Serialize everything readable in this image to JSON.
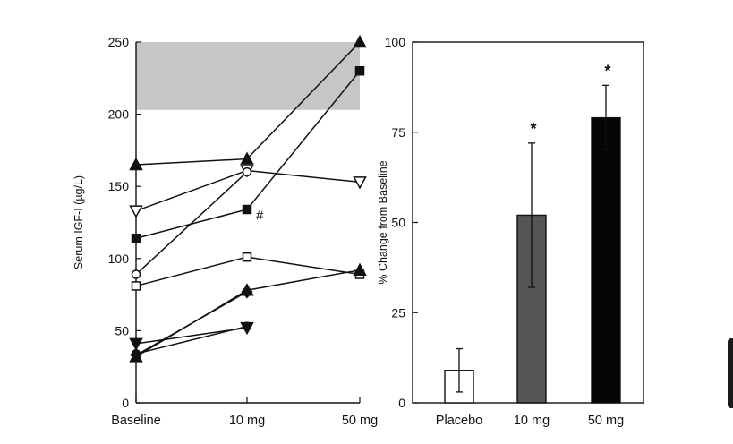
{
  "chart_data": [
    {
      "type": "line",
      "ylabel": "Serum IGF-I (µg/L)",
      "ylim": [
        0,
        250
      ],
      "yticks": [
        0,
        50,
        100,
        150,
        200,
        250
      ],
      "categories": [
        "Baseline",
        "10 mg",
        "50 mg"
      ],
      "reference_band": [
        203,
        250
      ],
      "series": [
        {
          "marker": "triangle-up-filled",
          "values": [
            165,
            169,
            250
          ]
        },
        {
          "marker": "square-filled",
          "values": [
            114,
            134,
            230
          ]
        },
        {
          "marker": "triangle-down-open",
          "values": [
            133,
            161,
            153
          ]
        },
        {
          "marker": "circle-open",
          "values": [
            89,
            160,
            null
          ]
        },
        {
          "marker": "square-open",
          "values": [
            81,
            101,
            89
          ]
        },
        {
          "marker": "diamond-filled",
          "values": [
            33,
            77,
            null
          ]
        },
        {
          "marker": "triangle-up-filled",
          "values": [
            32,
            78,
            92
          ]
        },
        {
          "marker": "triangle-down-filled",
          "values": [
            41,
            52,
            null
          ]
        },
        {
          "marker": "circle-filled",
          "values": [
            34,
            53,
            null
          ]
        }
      ],
      "annotations": [
        {
          "text": "#",
          "category": "10 mg",
          "value": 130
        }
      ]
    },
    {
      "type": "bar",
      "ylabel": "% Change from Baseline",
      "ylim": [
        0,
        100
      ],
      "yticks": [
        0,
        25,
        50,
        75,
        100
      ],
      "categories": [
        "Placebo",
        "10 mg",
        "50 mg"
      ],
      "values": [
        9,
        52,
        79
      ],
      "error": [
        6,
        20,
        9
      ],
      "bar_colors": [
        "#ffffff",
        "#555555",
        "#050505"
      ],
      "significance": [
        "",
        "*",
        "*"
      ]
    }
  ]
}
